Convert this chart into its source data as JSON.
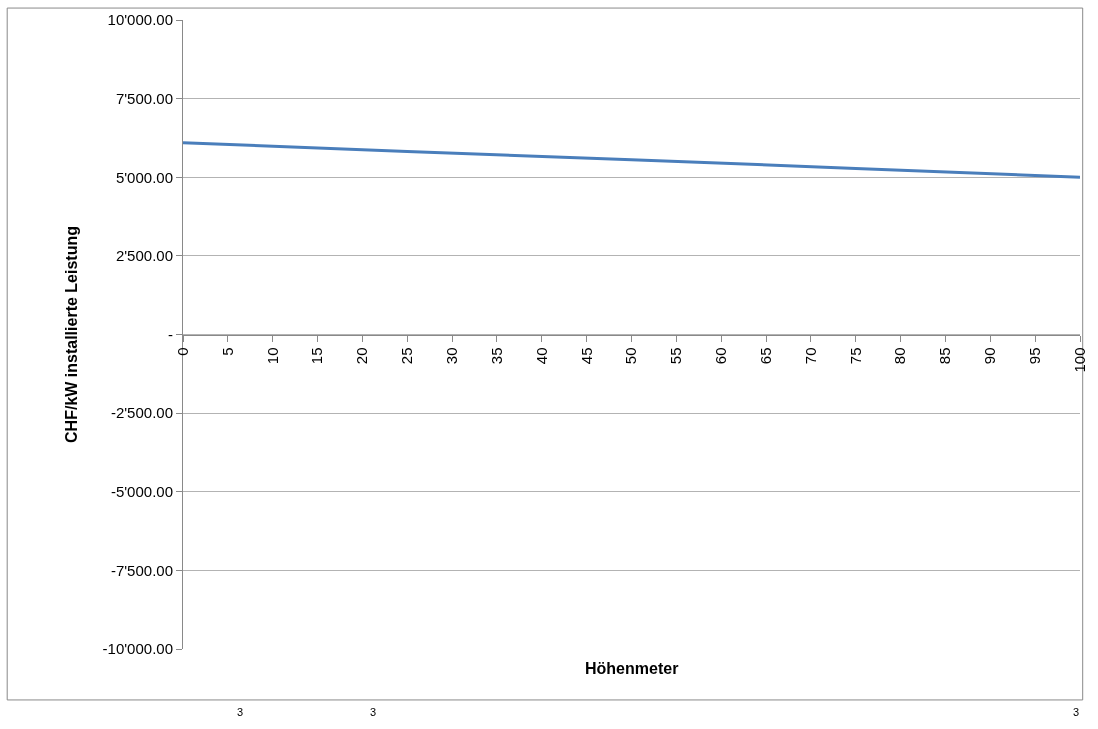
{
  "chart_data": {
    "type": "line",
    "xlabel": "Höhenmeter",
    "ylabel": "CHF/kW installierte Leistung",
    "x": [
      0,
      25,
      50,
      75,
      100
    ],
    "series": [
      {
        "color": "#4a7ebb",
        "values": [
          6100,
          5820,
          5560,
          5280,
          5000
        ]
      }
    ],
    "xlim": [
      0,
      100
    ],
    "xticks": [
      0,
      5,
      10,
      15,
      20,
      25,
      30,
      35,
      40,
      45,
      50,
      55,
      60,
      65,
      70,
      75,
      80,
      85,
      90,
      95,
      100
    ],
    "ylim": [
      -10000,
      10000
    ],
    "yticks": [
      {
        "value": -10000,
        "label": "-10'000.00"
      },
      {
        "value": -7500,
        "label": "-7'500.00"
      },
      {
        "value": -5000,
        "label": "-5'000.00"
      },
      {
        "value": -2500,
        "label": "-2'500.00"
      },
      {
        "value": 0,
        "label": "-"
      },
      {
        "value": 2500,
        "label": "2'500.00"
      },
      {
        "value": 5000,
        "label": "5'000.00"
      },
      {
        "value": 7500,
        "label": "7'500.00"
      },
      {
        "value": 10000,
        "label": "10'000.00"
      }
    ],
    "grid": "y",
    "marker": "none",
    "line_style": "solid",
    "annotations": [
      "3",
      "3",
      "3"
    ]
  }
}
